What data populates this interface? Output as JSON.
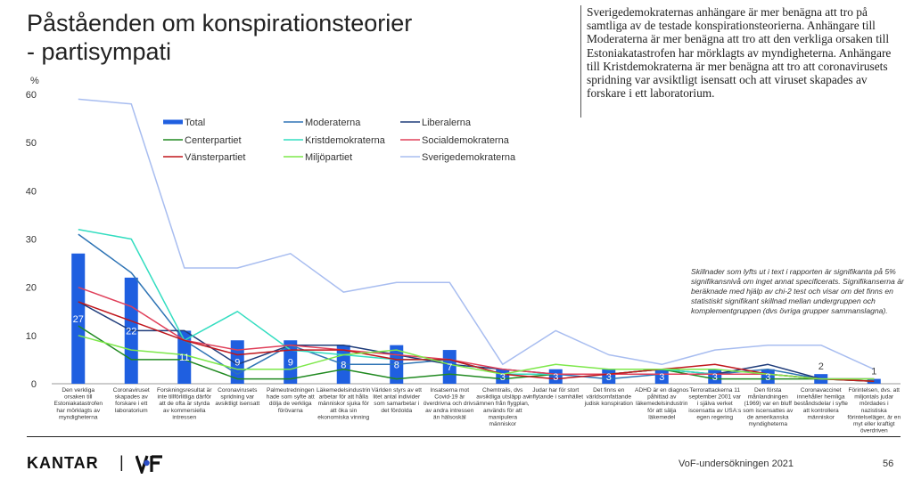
{
  "title": [
    "Påståenden om konspirationsteorier",
    "- partisympati"
  ],
  "sidebox_text": "Sverigedemokraternas anhängare är mer benägna att tro på samtliga av de testade konspirationsteorierna. Anhängare till Moderaterna är mer benägna att tro att den verkliga orsaken till Estoniakatastrofen har mörklagts av myndigheterna. Anhängare till Kristdemokraterna är mer benägna att tro att coronavirusets spridning var avsiktligt isensatt och att viruset skapades av forskare i ett laboratorium.",
  "footnote": "Skillnader som lyfts ut i text i rapporten är signifikanta på 5% signifikansnivå om inget annat specificerats. Signifikanserna är beräknade med hjälp av chi-2 test och visar om det finns en statistiskt signifikant skillnad mellan undergruppen och komplementgruppen (dvs övriga grupper sammanslagna).",
  "footer": {
    "brand": "KANTAR",
    "separator": "|",
    "vof_logo_icon": "vof-logo",
    "survey": "VoF-undersökningen 2021",
    "page": "56"
  },
  "chart_data": {
    "type": "bar",
    "ylabel": "%",
    "ylim": [
      0,
      60
    ],
    "yticks": [
      0,
      10,
      20,
      30,
      40,
      50,
      60
    ],
    "categories": [
      [
        "Den verkliga",
        "orsaken till",
        "Estoniakatastrofen",
        "har mörklagts av",
        "myndigheterna"
      ],
      [
        "Coronaviruset",
        "skapades av",
        "forskare i ett",
        "laboratorium"
      ],
      [
        "Forskningsresultat är",
        "inte tillförlitliga därför",
        "att de ofta är styrda",
        "av kommersiella",
        "intressen"
      ],
      [
        "Coronavirusets",
        "spridning var",
        "avsiktligt isensatt"
      ],
      [
        "Palmeutredningen",
        "hade som syfte att",
        "dölja de verkliga",
        "förövarna"
      ],
      [
        "Läkemedelsindustrin",
        "arbetar för att hålla",
        "människor sjuka för",
        "att öka sin",
        "ekonomiska vinning"
      ],
      [
        "Världen styrs av ett",
        "litet antal individer",
        "som samarbetar i",
        "det fördolda"
      ],
      [
        "Insatserna mot",
        "Covid-19 är",
        "överdrivna och drivs",
        "av andra intressen",
        "än hälsoskäl"
      ],
      [
        "Chemtrails, dvs",
        "avsiktliga utsläpp av",
        "ämnen från flygplan,",
        "används för att",
        "manipulera",
        "människor"
      ],
      [
        "Judar har för stort",
        "inflytande i samhället"
      ],
      [
        "Det finns en",
        "världsomfattande",
        "judisk konspiration"
      ],
      [
        "ADHD är en diagnos",
        "påhittad av",
        "läkemedelsindustrin",
        "för att sälja",
        "läkemedel"
      ],
      [
        "Terrorattackerna 11",
        "september 2001 var",
        "i själva verket",
        "iscensatta av USA:s",
        "egen regering"
      ],
      [
        "Den första",
        "månlandningen",
        "(1969) var en bluff",
        "som iscensattes av",
        "de amerikanska",
        "myndigheterna"
      ],
      [
        "Coronavaccinet",
        "innehåller hemliga",
        "beståndsdelar i syfte",
        "att kontrollera",
        "människor"
      ],
      [
        "Förintelsen, dvs. att",
        "miljontals judar",
        "mördades i",
        "nazistiska",
        "förintelseläger, är en",
        "myt eller kraftigt",
        "överdriven"
      ]
    ],
    "bar_series": {
      "name": "Total",
      "color": "#1f5fe0",
      "values": [
        27,
        22,
        11,
        9,
        9,
        8,
        8,
        7,
        3,
        3,
        3,
        3,
        3,
        3,
        2,
        1
      ]
    },
    "line_series": [
      {
        "name": "Moderaterna",
        "color": "#2e74b5",
        "values": [
          31,
          23,
          9,
          2,
          8,
          4,
          4,
          5,
          2,
          2,
          1,
          2,
          2,
          3,
          1,
          0.5
        ]
      },
      {
        "name": "Liberalerna",
        "color": "#1f3c7a",
        "values": [
          17,
          11,
          11,
          4,
          8,
          8,
          6,
          4,
          3,
          2,
          2,
          3,
          2,
          4,
          1,
          1
        ]
      },
      {
        "name": "Centerpartiet",
        "color": "#218a21",
        "values": [
          12,
          5,
          5,
          1,
          1,
          3,
          1,
          2,
          1,
          2,
          2,
          3,
          1,
          1,
          1,
          0.5
        ]
      },
      {
        "name": "Kristdemokraterna",
        "color": "#33ddc0",
        "values": [
          32,
          30,
          9,
          15,
          7,
          6,
          5,
          5,
          2,
          2,
          2,
          3,
          2,
          2,
          1,
          1
        ]
      },
      {
        "name": "Socialdemokraterna",
        "color": "#e0405a",
        "values": [
          20,
          16,
          9,
          7,
          8,
          7,
          6,
          5,
          3,
          2,
          2,
          2,
          2,
          2,
          1,
          1
        ]
      },
      {
        "name": "Vänsterpartiet",
        "color": "#c0161c",
        "values": [
          17,
          13,
          9,
          6,
          7,
          7,
          5,
          5,
          2,
          1,
          2,
          3,
          4,
          2,
          1,
          0.5
        ]
      },
      {
        "name": "Miljöpartiet",
        "color": "#7de84a",
        "values": [
          10,
          7,
          6,
          3,
          3,
          6,
          7,
          4,
          2,
          4,
          3,
          3,
          3,
          2,
          1,
          1
        ]
      },
      {
        "name": "Sverigedemokraterna",
        "color": "#a8bdf0",
        "values": [
          59,
          58,
          24,
          24,
          27,
          19,
          21,
          21,
          4,
          11,
          6,
          4,
          7,
          8,
          8,
          3
        ]
      }
    ],
    "legend_placement": "top-left-inside",
    "grid": false
  }
}
